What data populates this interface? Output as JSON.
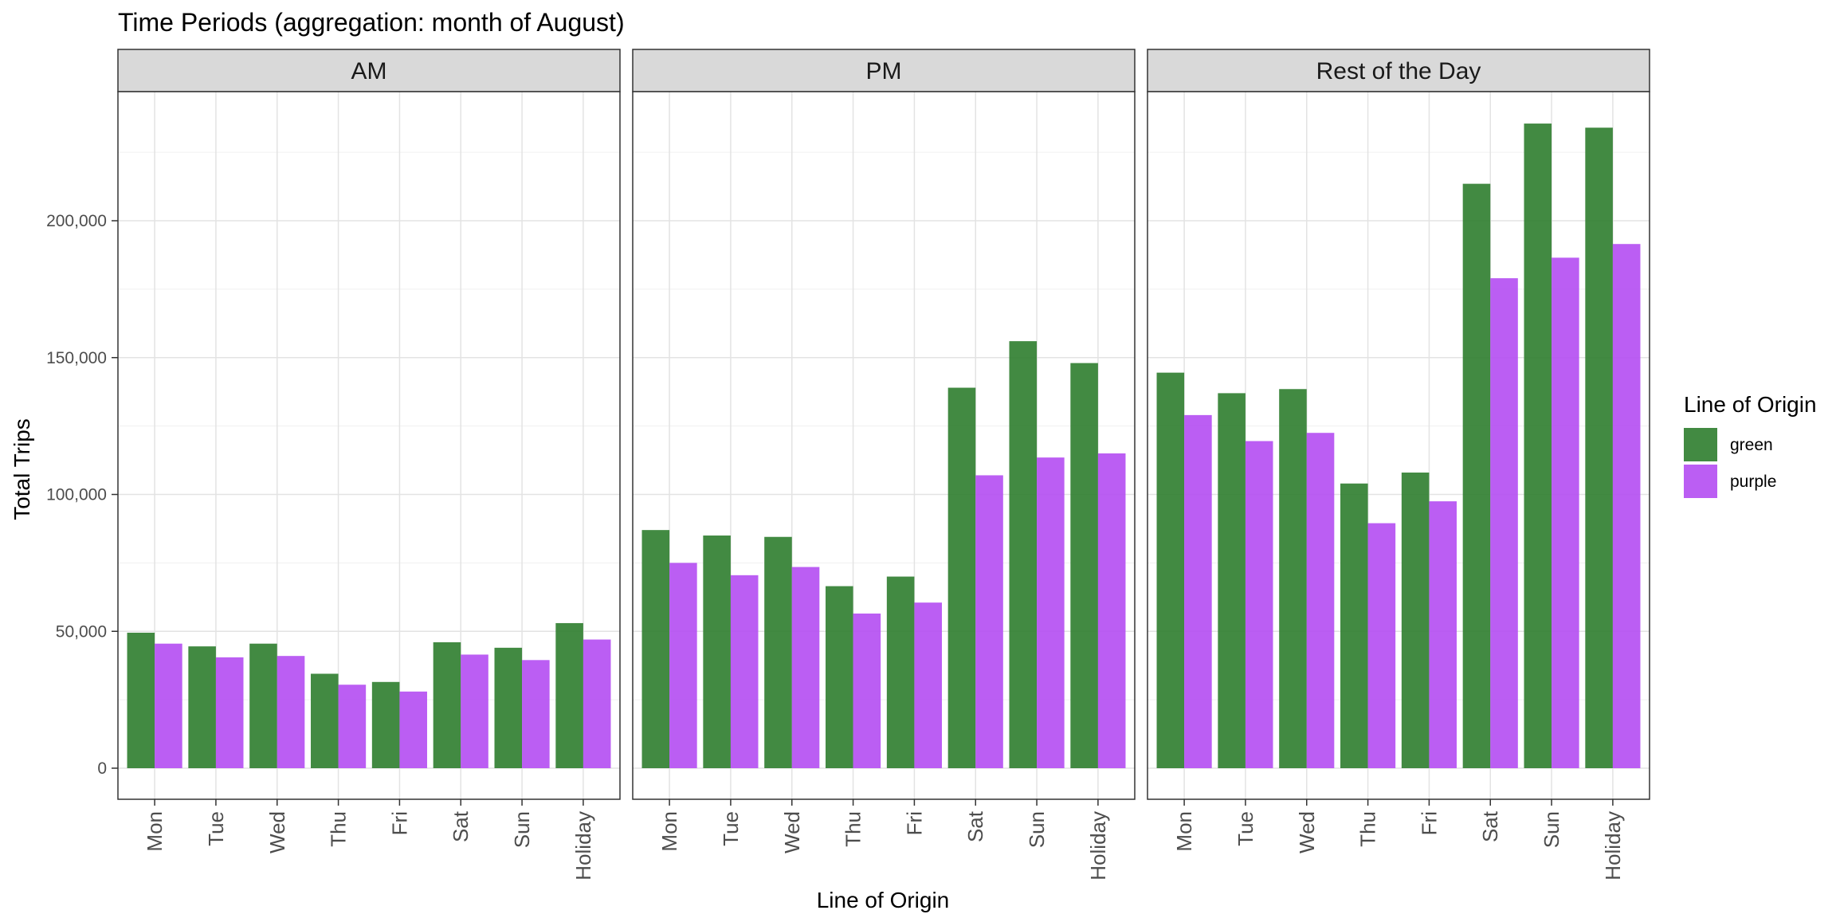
{
  "chart_data": {
    "type": "bar",
    "title": "Time Periods (aggregation: month of August)",
    "xlabel": "Line of Origin",
    "ylabel": "Total Trips",
    "ylim": [
      0,
      250000
    ],
    "yticks": [
      0,
      50000,
      100000,
      150000,
      200000
    ],
    "ytick_labels": [
      "0",
      "50,000",
      "100,000",
      "150,000",
      "200,000"
    ],
    "categories": [
      "Mon",
      "Tue",
      "Wed",
      "Thu",
      "Fri",
      "Sat",
      "Sun",
      "Holiday"
    ],
    "legend": {
      "title": "Line of Origin",
      "position": "right",
      "entries": [
        {
          "name": "green",
          "color": "#2e7d2e"
        },
        {
          "name": "purple",
          "color": "#b44df2"
        }
      ]
    },
    "grid": true,
    "panels": [
      {
        "name": "AM",
        "series": [
          {
            "name": "green",
            "values": [
              49500,
              44500,
              45500,
              34500,
              31500,
              46000,
              44000,
              53000
            ]
          },
          {
            "name": "purple",
            "values": [
              45500,
              40500,
              41000,
              30500,
              28000,
              41500,
              39500,
              47000
            ]
          }
        ]
      },
      {
        "name": "PM",
        "series": [
          {
            "name": "green",
            "values": [
              87000,
              85000,
              84500,
              66500,
              70000,
              139000,
              156000,
              148000
            ]
          },
          {
            "name": "purple",
            "values": [
              75000,
              70500,
              73500,
              56500,
              60500,
              107000,
              113500,
              115000
            ]
          }
        ]
      },
      {
        "name": "Rest of the Day",
        "series": [
          {
            "name": "green",
            "values": [
              144500,
              137000,
              138500,
              104000,
              108000,
              213500,
              235500,
              234000
            ]
          },
          {
            "name": "purple",
            "values": [
              129000,
              119500,
              122500,
              89500,
              97500,
              179000,
              186500,
              191500
            ]
          }
        ]
      }
    ]
  }
}
